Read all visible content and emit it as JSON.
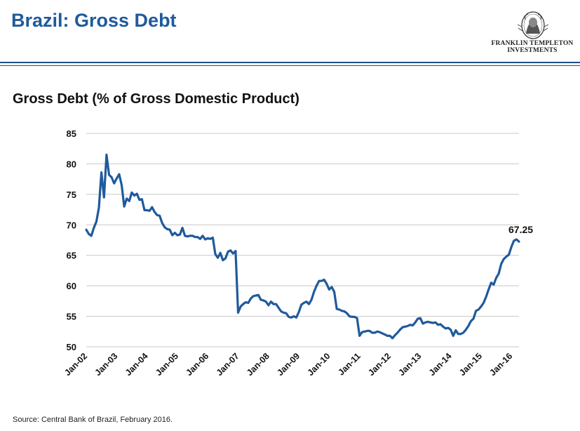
{
  "header": {
    "title": "Brazil: Gross Debt",
    "logo_line1": "FRANKLIN TEMPLETON",
    "logo_line2": "INVESTMENTS"
  },
  "colors": {
    "title": "#1f5a9c",
    "line": "#1f5a9c",
    "grid": "#c8c8c8"
  },
  "chart_data": {
    "type": "line",
    "title": "Gross Debt (% of Gross Domestic Product)",
    "xlabel": "",
    "ylabel": "",
    "ylim": [
      50,
      85
    ],
    "yticks": [
      50,
      55,
      60,
      65,
      70,
      75,
      80,
      85
    ],
    "grid": true,
    "x_tick_labels": [
      "Jan-02",
      "Jan-03",
      "Jan-04",
      "Jan-05",
      "Jan-06",
      "Jan-07",
      "Jan-08",
      "Jan-09",
      "Jan-10",
      "Jan-11",
      "Jan-12",
      "Jan-13",
      "Jan-14",
      "Jan-15",
      "Jan-16"
    ],
    "x_range": [
      "2002-01",
      "2016-02"
    ],
    "series": [
      {
        "name": "",
        "points": [
          [
            "2002-01",
            69.2
          ],
          [
            "2002-02",
            68.5
          ],
          [
            "2002-03",
            68.2
          ],
          [
            "2002-04",
            69.5
          ],
          [
            "2002-05",
            70.5
          ],
          [
            "2002-06",
            72.8
          ],
          [
            "2002-07",
            78.6
          ],
          [
            "2002-08",
            74.5
          ],
          [
            "2002-09",
            81.5
          ],
          [
            "2002-10",
            78.2
          ],
          [
            "2002-11",
            77.8
          ],
          [
            "2002-12",
            76.8
          ],
          [
            "2003-01",
            77.6
          ],
          [
            "2003-02",
            78.3
          ],
          [
            "2003-03",
            76.5
          ],
          [
            "2003-04",
            73.0
          ],
          [
            "2003-05",
            74.3
          ],
          [
            "2003-06",
            73.9
          ],
          [
            "2003-07",
            75.3
          ],
          [
            "2003-08",
            74.8
          ],
          [
            "2003-09",
            75.1
          ],
          [
            "2003-10",
            74.1
          ],
          [
            "2003-11",
            74.2
          ],
          [
            "2003-12",
            72.4
          ],
          [
            "2004-01",
            72.4
          ],
          [
            "2004-02",
            72.3
          ],
          [
            "2004-03",
            72.9
          ],
          [
            "2004-04",
            72.1
          ],
          [
            "2004-05",
            71.6
          ],
          [
            "2004-06",
            71.5
          ],
          [
            "2004-07",
            70.3
          ],
          [
            "2004-08",
            69.6
          ],
          [
            "2004-09",
            69.3
          ],
          [
            "2004-10",
            69.2
          ],
          [
            "2004-11",
            68.3
          ],
          [
            "2004-12",
            68.7
          ],
          [
            "2005-01",
            68.3
          ],
          [
            "2005-02",
            68.4
          ],
          [
            "2005-03",
            69.5
          ],
          [
            "2005-04",
            68.2
          ],
          [
            "2005-05",
            68.1
          ],
          [
            "2005-06",
            68.2
          ],
          [
            "2005-07",
            68.2
          ],
          [
            "2005-08",
            68.0
          ],
          [
            "2005-09",
            68.0
          ],
          [
            "2005-10",
            67.7
          ],
          [
            "2005-11",
            68.2
          ],
          [
            "2005-12",
            67.6
          ],
          [
            "2006-01",
            67.8
          ],
          [
            "2006-02",
            67.7
          ],
          [
            "2006-03",
            67.9
          ],
          [
            "2006-04",
            65.2
          ],
          [
            "2006-05",
            64.6
          ],
          [
            "2006-06",
            65.4
          ],
          [
            "2006-07",
            64.2
          ],
          [
            "2006-08",
            64.5
          ],
          [
            "2006-09",
            65.6
          ],
          [
            "2006-10",
            65.8
          ],
          [
            "2006-11",
            65.3
          ],
          [
            "2006-12",
            65.7
          ],
          [
            "2007-01",
            55.6
          ],
          [
            "2007-02",
            56.6
          ],
          [
            "2007-03",
            57.0
          ],
          [
            "2007-04",
            57.3
          ],
          [
            "2007-05",
            57.2
          ],
          [
            "2007-06",
            57.9
          ],
          [
            "2007-07",
            58.3
          ],
          [
            "2007-08",
            58.4
          ],
          [
            "2007-09",
            58.5
          ],
          [
            "2007-10",
            57.7
          ],
          [
            "2007-11",
            57.6
          ],
          [
            "2007-12",
            57.4
          ],
          [
            "2008-01",
            56.8
          ],
          [
            "2008-02",
            57.4
          ],
          [
            "2008-03",
            57.0
          ],
          [
            "2008-04",
            57.0
          ],
          [
            "2008-05",
            56.4
          ],
          [
            "2008-06",
            55.8
          ],
          [
            "2008-07",
            55.6
          ],
          [
            "2008-08",
            55.5
          ],
          [
            "2008-09",
            54.9
          ],
          [
            "2008-10",
            54.8
          ],
          [
            "2008-11",
            55.0
          ],
          [
            "2008-12",
            54.8
          ],
          [
            "2009-01",
            55.7
          ],
          [
            "2009-02",
            56.9
          ],
          [
            "2009-03",
            57.2
          ],
          [
            "2009-04",
            57.4
          ],
          [
            "2009-05",
            57.0
          ],
          [
            "2009-06",
            57.7
          ],
          [
            "2009-07",
            59.0
          ],
          [
            "2009-08",
            60.0
          ],
          [
            "2009-09",
            60.8
          ],
          [
            "2009-10",
            60.8
          ],
          [
            "2009-11",
            61.0
          ],
          [
            "2009-12",
            60.3
          ],
          [
            "2010-01",
            59.4
          ],
          [
            "2010-02",
            59.8
          ],
          [
            "2010-03",
            59.0
          ],
          [
            "2010-04",
            56.2
          ],
          [
            "2010-05",
            56.1
          ],
          [
            "2010-06",
            55.9
          ],
          [
            "2010-07",
            55.8
          ],
          [
            "2010-08",
            55.5
          ],
          [
            "2010-09",
            55.0
          ],
          [
            "2010-10",
            54.9
          ],
          [
            "2010-11",
            54.9
          ],
          [
            "2010-12",
            54.7
          ],
          [
            "2011-01",
            51.8
          ],
          [
            "2011-02",
            52.4
          ],
          [
            "2011-03",
            52.5
          ],
          [
            "2011-04",
            52.6
          ],
          [
            "2011-05",
            52.6
          ],
          [
            "2011-06",
            52.3
          ],
          [
            "2011-07",
            52.3
          ],
          [
            "2011-08",
            52.5
          ],
          [
            "2011-09",
            52.4
          ],
          [
            "2011-10",
            52.2
          ],
          [
            "2011-11",
            52.0
          ],
          [
            "2011-12",
            51.8
          ],
          [
            "2012-01",
            51.8
          ],
          [
            "2012-02",
            51.4
          ],
          [
            "2012-03",
            51.9
          ],
          [
            "2012-04",
            52.3
          ],
          [
            "2012-05",
            52.8
          ],
          [
            "2012-06",
            53.2
          ],
          [
            "2012-07",
            53.3
          ],
          [
            "2012-08",
            53.4
          ],
          [
            "2012-09",
            53.6
          ],
          [
            "2012-10",
            53.5
          ],
          [
            "2012-11",
            54.0
          ],
          [
            "2012-12",
            54.6
          ],
          [
            "2013-01",
            54.7
          ],
          [
            "2013-02",
            53.8
          ],
          [
            "2013-03",
            54.0
          ],
          [
            "2013-04",
            54.1
          ],
          [
            "2013-05",
            54.0
          ],
          [
            "2013-06",
            53.9
          ],
          [
            "2013-07",
            54.0
          ],
          [
            "2013-08",
            53.6
          ],
          [
            "2013-09",
            53.7
          ],
          [
            "2013-10",
            53.3
          ],
          [
            "2013-11",
            53.0
          ],
          [
            "2013-12",
            53.1
          ],
          [
            "2014-01",
            52.8
          ],
          [
            "2014-02",
            51.8
          ],
          [
            "2014-03",
            52.7
          ],
          [
            "2014-04",
            52.1
          ],
          [
            "2014-05",
            52.1
          ],
          [
            "2014-06",
            52.3
          ],
          [
            "2014-07",
            52.8
          ],
          [
            "2014-08",
            53.4
          ],
          [
            "2014-09",
            54.2
          ],
          [
            "2014-10",
            54.6
          ],
          [
            "2014-11",
            55.9
          ],
          [
            "2014-12",
            56.1
          ],
          [
            "2015-01",
            56.6
          ],
          [
            "2015-02",
            57.2
          ],
          [
            "2015-03",
            58.2
          ],
          [
            "2015-04",
            59.4
          ],
          [
            "2015-05",
            60.5
          ],
          [
            "2015-06",
            60.2
          ],
          [
            "2015-07",
            61.3
          ],
          [
            "2015-08",
            62.0
          ],
          [
            "2015-09",
            63.6
          ],
          [
            "2015-10",
            64.4
          ],
          [
            "2015-11",
            64.8
          ],
          [
            "2015-12",
            65.1
          ],
          [
            "2016-01",
            66.4
          ],
          [
            "2016-02",
            67.4
          ],
          [
            "2016-03",
            67.6
          ],
          [
            "2016-04",
            67.25
          ]
        ]
      }
    ],
    "annotations": [
      {
        "x": "2016-04",
        "y": 67.25,
        "text": "67.25"
      }
    ]
  },
  "footer": {
    "source": "Source: Central Bank of Brazil, February 2016."
  }
}
